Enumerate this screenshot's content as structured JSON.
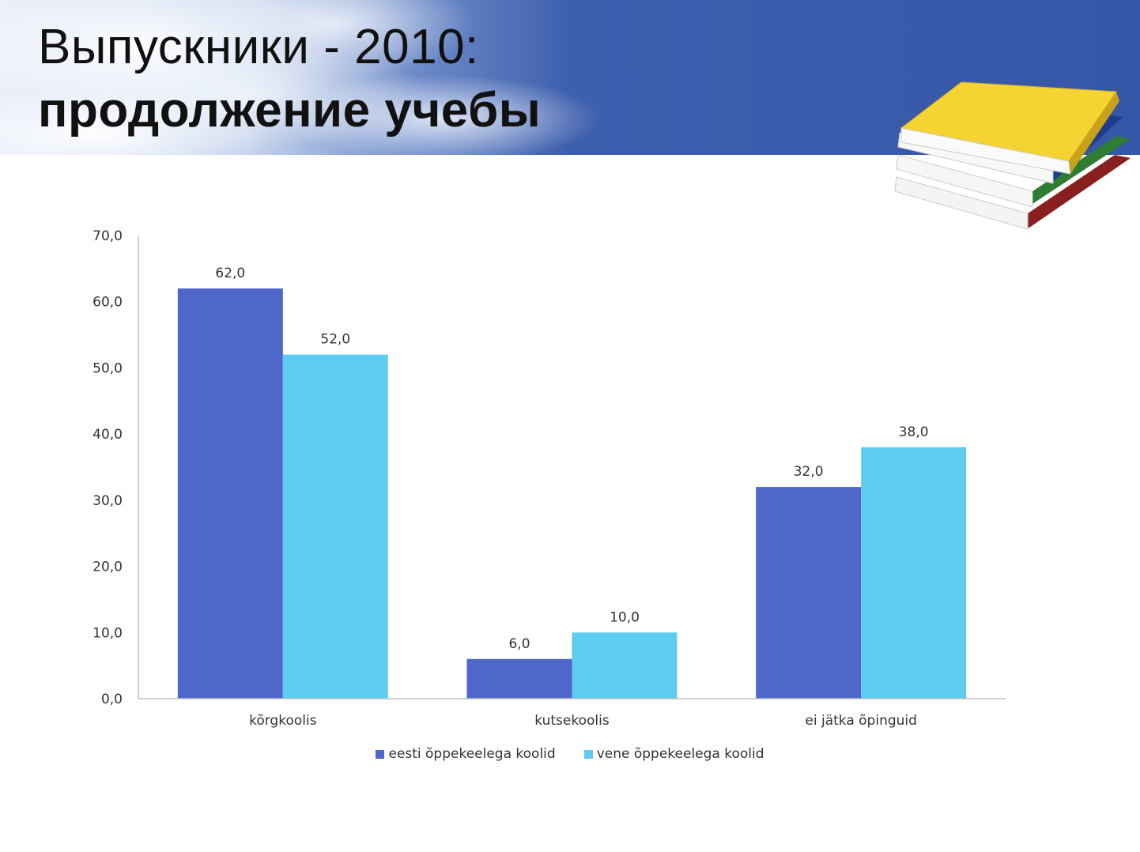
{
  "slide": {
    "title_line1": "Выпускники - 2010:",
    "title_line2": "продолжение учебы"
  },
  "colors": {
    "banner_blue": "#3a5cad",
    "series1": "#4f67c9",
    "series2": "#5ecbf0",
    "axis": "#bfbfbf",
    "text": "#333333"
  },
  "chart_data": {
    "type": "bar",
    "categories": [
      "kõrgkoolis",
      "kutsekoolis",
      "ei jätka õpinguid"
    ],
    "series": [
      {
        "name": "eesti õppekeelega koolid",
        "values": [
          62.0,
          6.0,
          32.0
        ],
        "labels": [
          "62,0",
          "6,0",
          "32,0"
        ]
      },
      {
        "name": "vene õppekeelega koolid",
        "values": [
          52.0,
          10.0,
          38.0
        ],
        "labels": [
          "52,0",
          "10,0",
          "38,0"
        ]
      }
    ],
    "ylim": [
      0,
      70
    ],
    "yticks": [
      0,
      10,
      20,
      30,
      40,
      50,
      60,
      70
    ],
    "ytick_labels": [
      "0,0",
      "10,0",
      "20,0",
      "30,0",
      "40,0",
      "50,0",
      "60,0",
      "70,0"
    ],
    "grid": false,
    "legend": "bottom"
  }
}
